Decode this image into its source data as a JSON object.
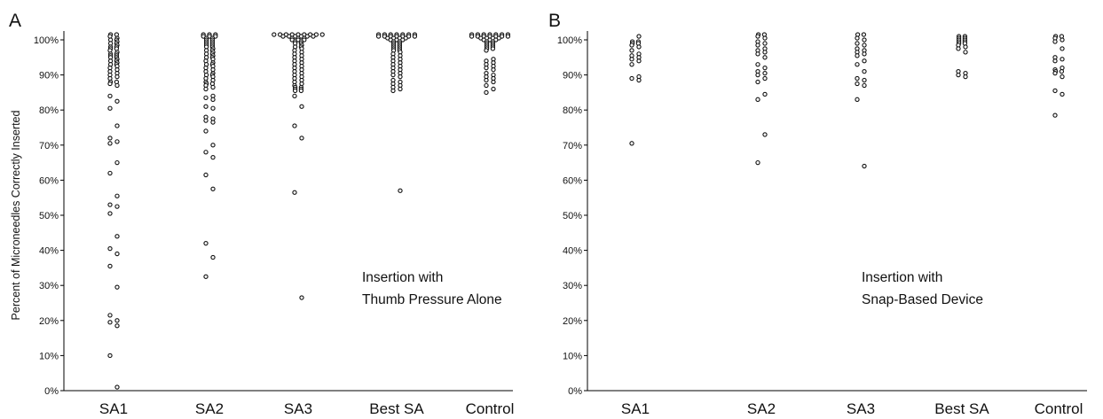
{
  "chart_data": [
    {
      "panel": "A",
      "type": "scatter",
      "ylabel": "Percent of Microneedles Correctly Inserted",
      "annotation": [
        "Insertion with",
        "Thumb Pressure Alone"
      ],
      "categories": [
        "SA1",
        "SA2",
        "SA3",
        "Best SA",
        "Control"
      ],
      "y_ticks": [
        "0%",
        "10%",
        "20%",
        "30%",
        "40%",
        "50%",
        "60%",
        "70%",
        "80%",
        "90%",
        "100%"
      ],
      "ylim": [
        0,
        100
      ],
      "grid": false,
      "series": [
        {
          "category": "SA1",
          "values": [
            101.5,
            101.5,
            101,
            100.5,
            100,
            100,
            99.5,
            99,
            99,
            98.5,
            98,
            98,
            97.5,
            97.5,
            97,
            96.5,
            96,
            96,
            95.5,
            95.5,
            95,
            95,
            94.5,
            94,
            94,
            93.5,
            93,
            93,
            92.5,
            92,
            91.5,
            91,
            90.5,
            90,
            89.5,
            89,
            88,
            88,
            87.5,
            87,
            84,
            82.5,
            80.5,
            75.5,
            72,
            71,
            70.5,
            65,
            62,
            55.5,
            53,
            52.5,
            50.5,
            44,
            40.5,
            39,
            35.5,
            29.5,
            21.5,
            20,
            19.5,
            18.5,
            10,
            1
          ]
        },
        {
          "category": "SA2",
          "values": [
            101.5,
            101.5,
            101.5,
            101,
            101,
            101,
            100.5,
            100.5,
            100,
            100,
            99.5,
            99.5,
            99,
            99,
            98.5,
            98.5,
            98,
            98,
            97.5,
            97,
            97,
            96.5,
            96,
            96,
            95.5,
            95,
            95,
            94.5,
            94,
            93.5,
            93,
            93,
            92.5,
            92,
            91.5,
            91,
            90.5,
            90,
            90,
            89.5,
            89,
            88.5,
            88,
            87.5,
            87.5,
            87,
            86.5,
            86,
            84,
            83.5,
            83,
            81,
            80.5,
            78,
            77.5,
            77,
            76.5,
            74,
            70,
            68,
            66.5,
            61.5,
            57.5,
            42,
            38,
            32.5
          ]
        },
        {
          "category": "SA3",
          "values": [
            101.5,
            101.5,
            101.5,
            101.5,
            101.5,
            101.5,
            101.5,
            101.5,
            101.5,
            101,
            101,
            101,
            101,
            101,
            101,
            100.5,
            100.5,
            100.5,
            100,
            100,
            100,
            99.5,
            99.5,
            99,
            99,
            98.5,
            98,
            98,
            97.5,
            97,
            96.5,
            96,
            95.5,
            95,
            94.5,
            94,
            93.5,
            93,
            92.5,
            92,
            91.5,
            91,
            90.5,
            90,
            89.5,
            89,
            88.5,
            88,
            87.5,
            87,
            86.5,
            86.5,
            86,
            86,
            85.5,
            85.5,
            84,
            81,
            75.5,
            72,
            56.5,
            26.5
          ]
        },
        {
          "category": "Best SA",
          "values": [
            101.5,
            101.5,
            101.5,
            101.5,
            101.5,
            101.5,
            101.5,
            101,
            101,
            101,
            101,
            101,
            101,
            101,
            100.5,
            100.5,
            100.5,
            100.5,
            100,
            100,
            100,
            99.5,
            99.5,
            99,
            99,
            98.5,
            98.5,
            98,
            98,
            97.5,
            97.5,
            97,
            97,
            96.5,
            96,
            95.5,
            95,
            94.5,
            94,
            93.5,
            93,
            92.5,
            92,
            91.5,
            91,
            90.5,
            90,
            89.5,
            88.5,
            88,
            87.5,
            87,
            86.5,
            86,
            85.5,
            57
          ]
        },
        {
          "category": "Control",
          "values": [
            101.5,
            101.5,
            101.5,
            101.5,
            101.5,
            101.5,
            101.5,
            101,
            101,
            101,
            101,
            101,
            101,
            101,
            100.5,
            100.5,
            100.5,
            100.5,
            100,
            100,
            100,
            99.5,
            99.5,
            99,
            99,
            98.5,
            98.5,
            98,
            98,
            97.5,
            97.5,
            97,
            94.5,
            94,
            93.5,
            93,
            92.5,
            92,
            91.5,
            90.5,
            90,
            89.5,
            89,
            88.5,
            88,
            87,
            86,
            85
          ]
        }
      ]
    },
    {
      "panel": "B",
      "type": "scatter",
      "annotation": [
        "Insertion with",
        "Snap-Based Device"
      ],
      "categories": [
        "SA1",
        "SA2",
        "SA3",
        "Best SA",
        "Control"
      ],
      "y_ticks": [
        "0%",
        "10%",
        "20%",
        "30%",
        "40%",
        "50%",
        "60%",
        "70%",
        "80%",
        "90%",
        "100%"
      ],
      "ylim": [
        0,
        100
      ],
      "grid": false,
      "series": [
        {
          "category": "SA1",
          "values": [
            101,
            99.5,
            99.5,
            99,
            99,
            98.5,
            98,
            97,
            96,
            95.5,
            95,
            94.5,
            94,
            93,
            89.5,
            89,
            88.5,
            70.5
          ]
        },
        {
          "category": "SA2",
          "values": [
            101.5,
            101.5,
            101,
            100.5,
            99.5,
            99,
            98.5,
            97.5,
            97,
            96.5,
            96,
            95,
            93,
            92,
            91,
            90.5,
            90,
            89,
            88,
            84.5,
            83,
            73,
            65
          ]
        },
        {
          "category": "SA3",
          "values": [
            101.5,
            101.5,
            100.5,
            100,
            99,
            98.5,
            97.5,
            97,
            96.5,
            96,
            95.5,
            94,
            93,
            91,
            89,
            88.5,
            87.5,
            87,
            83,
            64
          ]
        },
        {
          "category": "Best SA",
          "values": [
            101,
            101,
            100.5,
            100.5,
            100,
            100,
            99.5,
            99.5,
            99,
            99,
            98.5,
            98,
            97.5,
            96.5,
            91,
            90.5,
            90,
            89.5
          ]
        },
        {
          "category": "Control",
          "values": [
            101,
            101,
            100.5,
            100,
            99.5,
            97.5,
            95,
            94.5,
            94,
            92,
            91.5,
            91,
            91,
            90.5,
            89.5,
            85.5,
            84.5,
            78.5
          ]
        }
      ]
    }
  ]
}
